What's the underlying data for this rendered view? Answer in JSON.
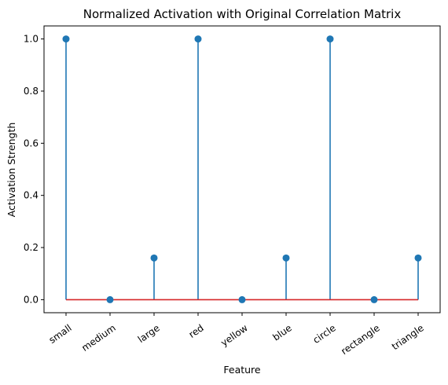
{
  "chart_data": {
    "type": "stem",
    "title": "Normalized Activation with Original Correlation Matrix",
    "xlabel": "Feature",
    "ylabel": "Activation Strength",
    "categories": [
      "small",
      "medium",
      "large",
      "red",
      "yellow",
      "blue",
      "circle",
      "rectangle",
      "triangle"
    ],
    "values": [
      1.0,
      0.0,
      0.16,
      1.0,
      0.0,
      0.16,
      1.0,
      0.0,
      0.16
    ],
    "yticks": [
      "0.0",
      "0.2",
      "0.4",
      "0.6",
      "0.8",
      "1.0"
    ],
    "ylim": [
      -0.05,
      1.05
    ],
    "grid": false,
    "colors": {
      "stem": "#1f77b4",
      "marker": "#1f77b4",
      "baseline": "#d62728"
    }
  }
}
